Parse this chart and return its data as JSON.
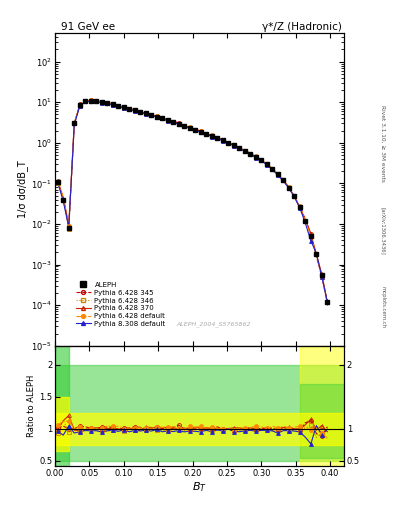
{
  "title_left": "91 GeV ee",
  "title_right": "γ*/Z (Hadronic)",
  "ylabel_main": "1/σ dσ/dB_T",
  "ylabel_ratio": "Ratio to ALEPH",
  "xlabel": "B_T",
  "right_label": "Rivet 3.1.10, ≥ 3M events",
  "watermark": "ALEPH_2004_S5765862",
  "arxiv_label": "[arXiv:1306.3436]",
  "mcplots_label": "mcplots.cern.ch",
  "ylim_main_lo": 1e-05,
  "ylim_main_hi": 500,
  "ylim_ratio_lo": 0.42,
  "ylim_ratio_hi": 2.3,
  "xlim_lo": 0.0,
  "xlim_hi": 0.42,
  "aleph_x": [
    0.004,
    0.012,
    0.02,
    0.028,
    0.036,
    0.044,
    0.052,
    0.06,
    0.068,
    0.076,
    0.084,
    0.092,
    0.1,
    0.108,
    0.116,
    0.124,
    0.132,
    0.14,
    0.148,
    0.156,
    0.164,
    0.172,
    0.18,
    0.188,
    0.196,
    0.204,
    0.212,
    0.22,
    0.228,
    0.236,
    0.244,
    0.252,
    0.26,
    0.268,
    0.276,
    0.284,
    0.292,
    0.3,
    0.308,
    0.316,
    0.324,
    0.332,
    0.34,
    0.348,
    0.356,
    0.364,
    0.372,
    0.38,
    0.388,
    0.396
  ],
  "aleph_y": [
    0.11,
    0.04,
    0.008,
    3.0,
    8.5,
    10.5,
    11.0,
    10.8,
    10.2,
    9.5,
    8.8,
    8.1,
    7.5,
    6.9,
    6.35,
    5.82,
    5.32,
    4.85,
    4.42,
    4.01,
    3.63,
    3.28,
    2.95,
    2.65,
    2.37,
    2.12,
    1.89,
    1.68,
    1.49,
    1.32,
    1.16,
    1.01,
    0.875,
    0.75,
    0.64,
    0.54,
    0.45,
    0.37,
    0.295,
    0.228,
    0.168,
    0.118,
    0.079,
    0.048,
    0.026,
    0.012,
    0.005,
    0.0018,
    0.00055,
    0.00012
  ],
  "aleph_yerr": [
    0.015,
    0.005,
    0.001,
    0.15,
    0.2,
    0.25,
    0.25,
    0.22,
    0.2,
    0.19,
    0.17,
    0.16,
    0.14,
    0.13,
    0.12,
    0.11,
    0.1,
    0.09,
    0.085,
    0.078,
    0.07,
    0.063,
    0.057,
    0.051,
    0.046,
    0.041,
    0.036,
    0.032,
    0.029,
    0.026,
    0.022,
    0.019,
    0.017,
    0.014,
    0.012,
    0.01,
    0.009,
    0.007,
    0.006,
    0.005,
    0.004,
    0.003,
    0.002,
    0.0015,
    0.001,
    0.0006,
    0.0003,
    0.00012,
    5e-05,
    2e-05
  ],
  "mc_colors": [
    "#cc0000",
    "#cc8800",
    "#cc2200",
    "#ff8800",
    "#2222cc"
  ],
  "mc_lstyles": [
    "--",
    ":",
    "-",
    "-.",
    "-"
  ],
  "mc_markers": [
    "o",
    "s",
    "^",
    "o",
    "^"
  ],
  "mc_mfcolors": [
    "none",
    "none",
    "none",
    "#ff8800",
    "#2222cc"
  ],
  "mc_labels": [
    "Pythia 6.428 345",
    "Pythia 6.428 346",
    "Pythia 6.428 370",
    "Pythia 6.428 default",
    "Pythia 8.308 default"
  ],
  "mc_scale": [
    1.01,
    0.99,
    1.005,
    1.02,
    0.97
  ],
  "green_band_lo": 0.5,
  "green_band_hi": 2.0,
  "yellow_band_lo": 0.75,
  "yellow_band_hi": 1.25,
  "green_color": "#33cc33",
  "yellow_color": "#ffff00",
  "ratio_yticks": [
    0.5,
    1.0,
    1.5,
    2.0
  ],
  "ratio_yticklabels": [
    "0.5",
    "1",
    "1.5",
    "2"
  ]
}
